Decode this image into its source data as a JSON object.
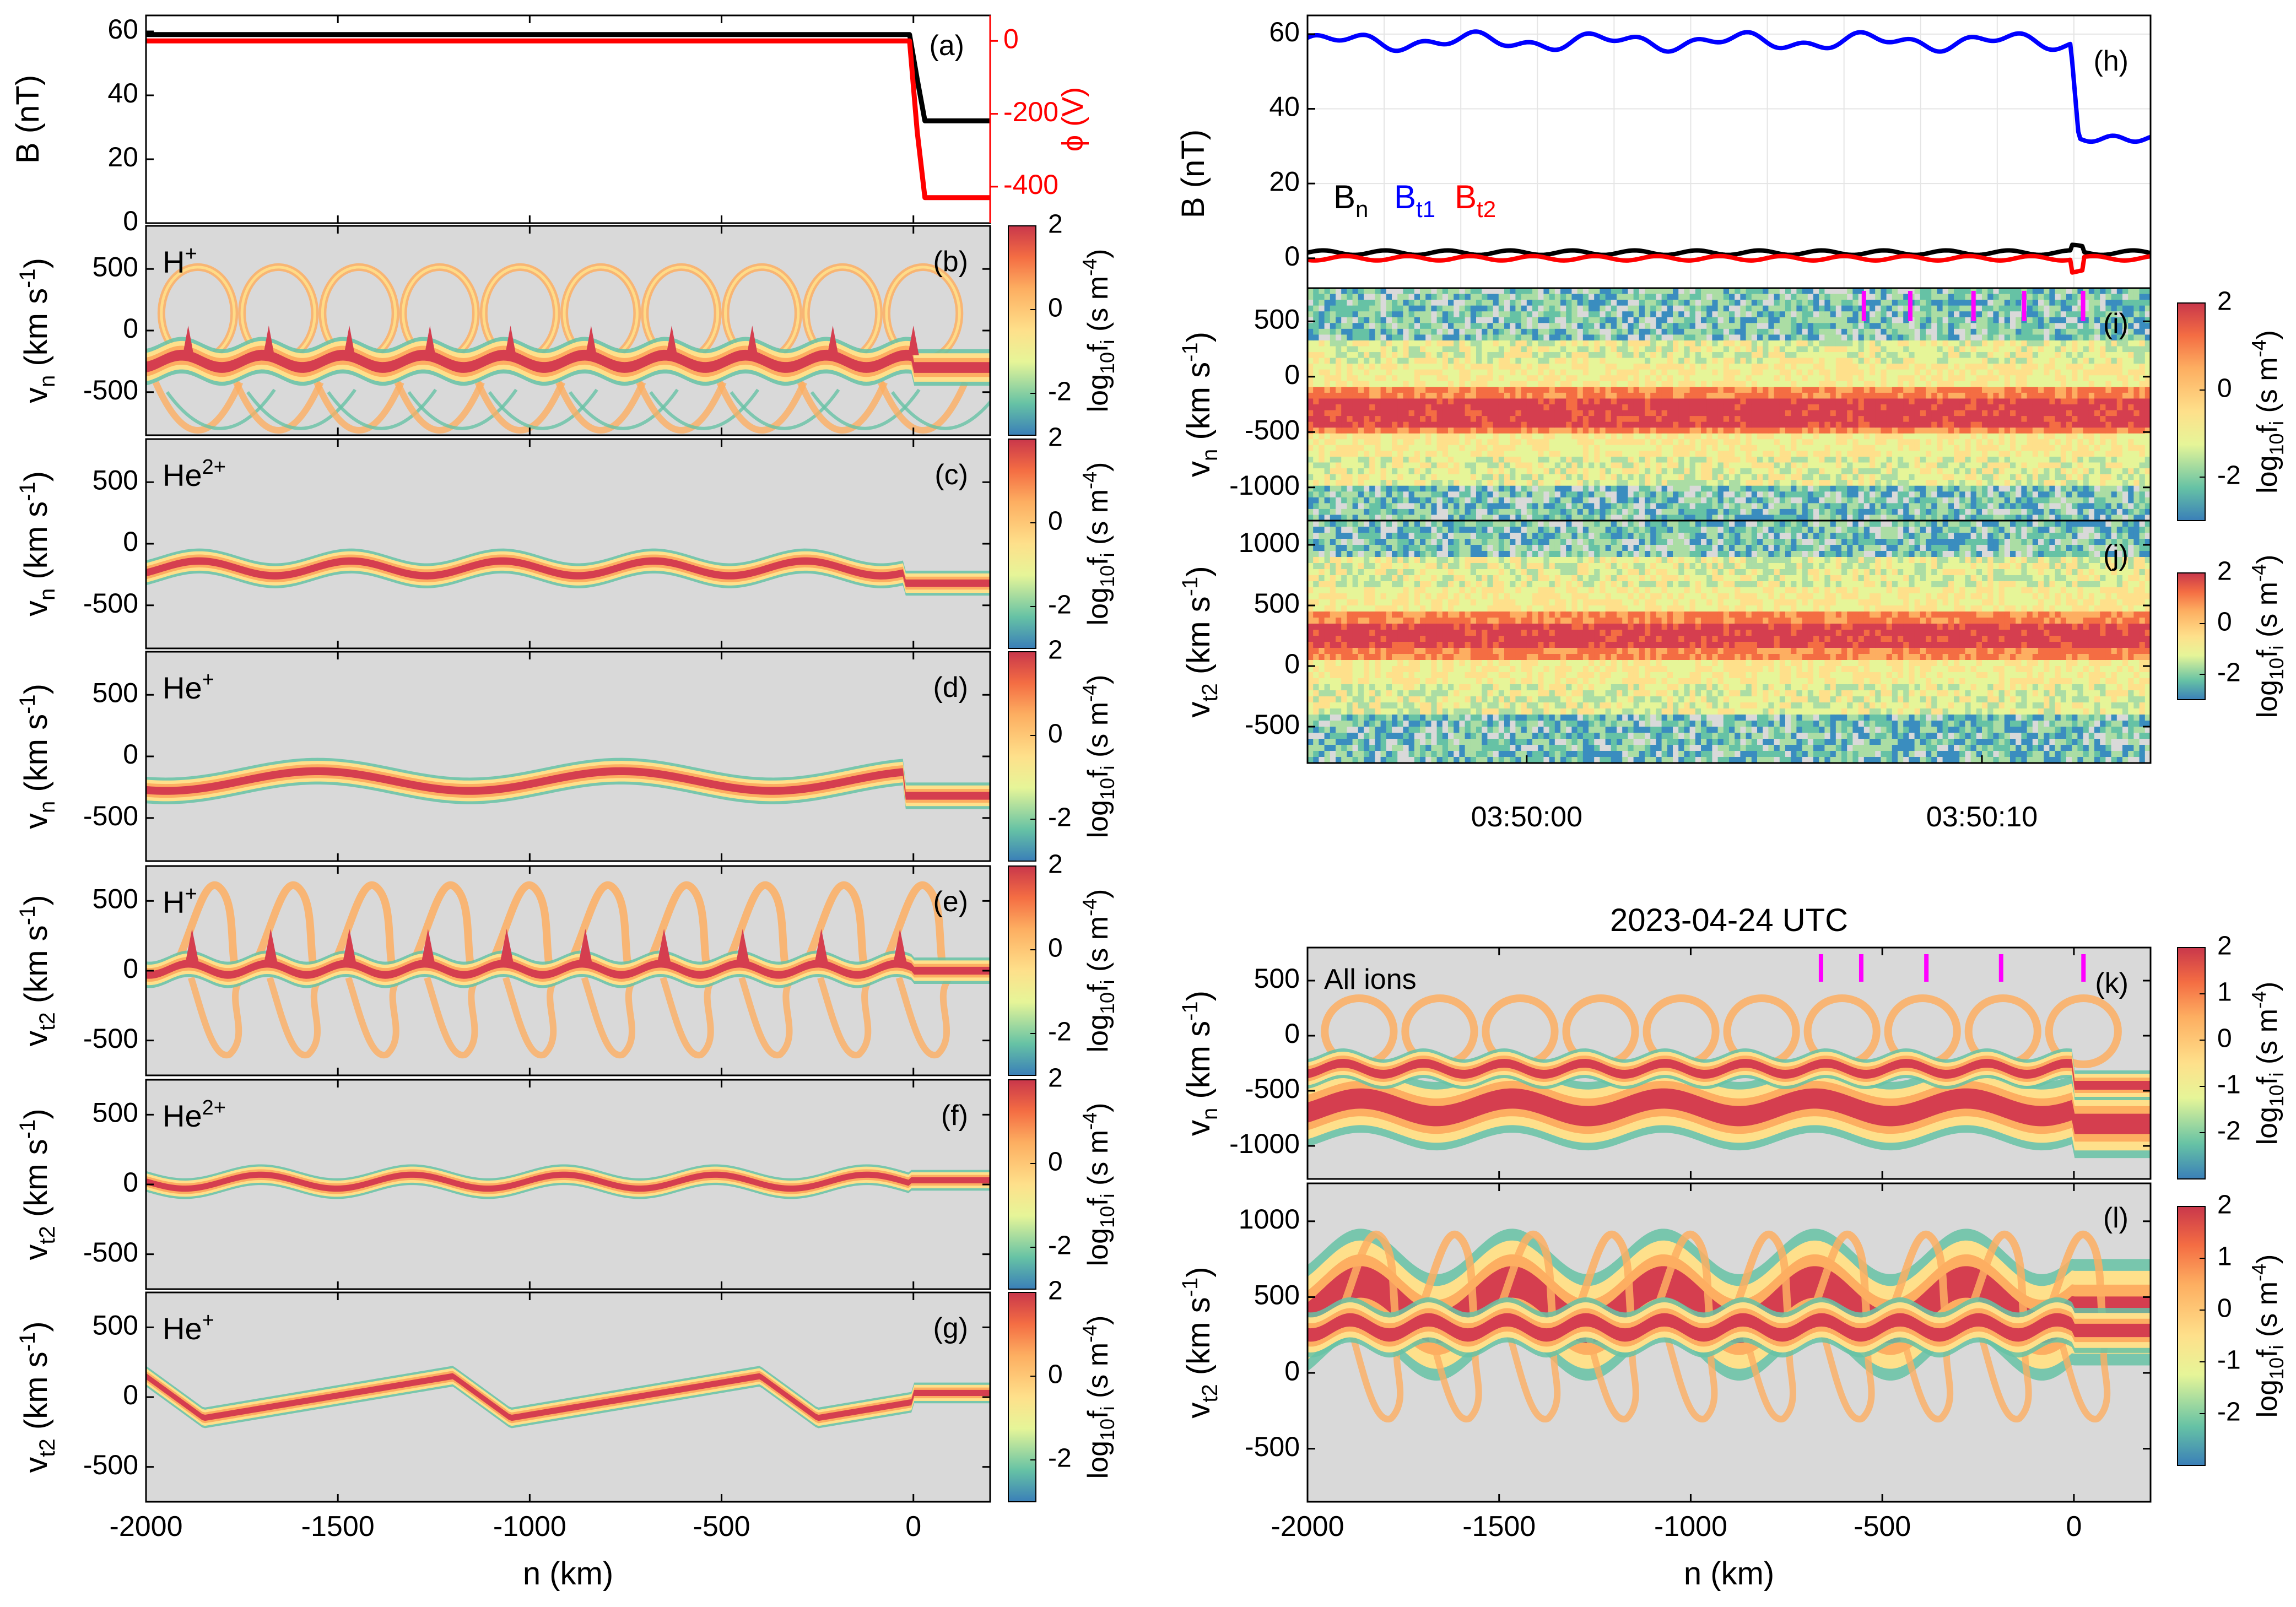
{
  "figure_date_label": "2023-04-24 UTC",
  "colorbar": {
    "label": "log₁₀fᵢ (s m⁻⁴)",
    "label_base": "log",
    "label_sub": "10",
    "label_f": "f",
    "label_sub2": "i",
    "label_unit": "(s m",
    "label_unit_exp": "-4",
    "ticks_simple": [
      "2",
      "0",
      "-2"
    ],
    "ticks_full": [
      "2",
      "1",
      "0",
      "-1",
      "-2"
    ],
    "range": [
      -3,
      2
    ]
  },
  "colors": {
    "panel_bg": "#d9d9d9",
    "black": "#000000",
    "blue": "#0000ff",
    "red": "#ff0000",
    "magenta": "#ff00ff",
    "grid": "#e5e5e5"
  },
  "chart_data": [
    {
      "id": "a",
      "type": "line",
      "panel_label": "(a)",
      "ylabel": "B (nT)",
      "y2label": "ϕ (V)",
      "xlim": [
        -2000,
        200
      ],
      "ylim": [
        0,
        65
      ],
      "y2lim": [
        -500,
        70
      ],
      "yticks": [
        0,
        20,
        40,
        60
      ],
      "y2ticks": [
        0,
        -200,
        -400
      ],
      "series": [
        {
          "name": "B",
          "color": "#000000",
          "axis": "left",
          "x": [
            -2000,
            -10,
            10,
            30,
            200
          ],
          "values": [
            59,
            59,
            45,
            32,
            32
          ]
        },
        {
          "name": "phi",
          "color": "#ff0000",
          "axis": "right",
          "x": [
            -2000,
            -10,
            10,
            30,
            200
          ],
          "values": [
            0,
            0,
            -250,
            -430,
            -430
          ]
        }
      ]
    },
    {
      "id": "b",
      "type": "heatmap",
      "panel_label": "(b)",
      "species": "H+",
      "species_base": "H",
      "species_sup": "+",
      "ylabel": "v_n (km s⁻¹)",
      "ylabel_var": "v",
      "ylabel_sub": "n",
      "ylim": [
        -850,
        850
      ],
      "yticks": [
        500,
        0,
        -500
      ],
      "pattern": "hn"
    },
    {
      "id": "c",
      "type": "heatmap",
      "panel_label": "(c)",
      "species": "He2+",
      "species_base": "He",
      "species_sup": "2+",
      "ylabel": "v_n (km s⁻¹)",
      "ylabel_var": "v",
      "ylabel_sub": "n",
      "ylim": [
        -850,
        850
      ],
      "yticks": [
        500,
        0,
        -500
      ],
      "pattern": "he2n"
    },
    {
      "id": "d",
      "type": "heatmap",
      "panel_label": "(d)",
      "species": "He+",
      "species_base": "He",
      "species_sup": "+",
      "ylabel": "v_n (km s⁻¹)",
      "ylabel_var": "v",
      "ylabel_sub": "n",
      "ylim": [
        -850,
        850
      ],
      "yticks": [
        500,
        0,
        -500
      ],
      "pattern": "he1n"
    },
    {
      "id": "e",
      "type": "heatmap",
      "panel_label": "(e)",
      "species": "H+",
      "species_base": "H",
      "species_sup": "+",
      "ylabel": "v_t2 (km s⁻¹)",
      "ylabel_var": "v",
      "ylabel_sub": "t2",
      "ylim": [
        -750,
        750
      ],
      "yticks": [
        500,
        0,
        -500
      ],
      "pattern": "ht"
    },
    {
      "id": "f",
      "type": "heatmap",
      "panel_label": "(f)",
      "species": "He2+",
      "species_base": "He",
      "species_sup": "2+",
      "ylabel": "v_t2 (km s⁻¹)",
      "ylabel_var": "v",
      "ylabel_sub": "t2",
      "ylim": [
        -750,
        750
      ],
      "yticks": [
        500,
        0,
        -500
      ],
      "pattern": "he2t"
    },
    {
      "id": "g",
      "type": "heatmap",
      "panel_label": "(g)",
      "species": "He+",
      "species_base": "He",
      "species_sup": "+",
      "ylabel": "v_t2 (km s⁻¹)",
      "ylabel_var": "v",
      "ylabel_sub": "t2",
      "ylim": [
        -750,
        750
      ],
      "yticks": [
        500,
        0,
        -500
      ],
      "pattern": "he1t",
      "xlabel": "n (km)",
      "xlim": [
        -2000,
        200
      ],
      "xticks": [
        -2000,
        -1500,
        -1000,
        -500,
        0
      ]
    },
    {
      "id": "h",
      "type": "line",
      "panel_label": "(h)",
      "ylabel": "B (nT)",
      "ylim": [
        -8,
        65
      ],
      "yticks": [
        0,
        20,
        40,
        60
      ],
      "legend": [
        {
          "text": "B",
          "sub": "n",
          "color": "#000000"
        },
        {
          "text": "B",
          "sub": "t1",
          "color": "#0000ff"
        },
        {
          "text": "B",
          "sub": "t2",
          "color": "#ff0000"
        }
      ],
      "series": [
        {
          "name": "Bn",
          "color": "#000000",
          "level": 1.5
        },
        {
          "name": "Bt1",
          "color": "#0000ff",
          "level": 58,
          "jump_to": 32
        },
        {
          "name": "Bt2",
          "color": "#ff0000",
          "level": 0
        }
      ]
    },
    {
      "id": "i",
      "type": "heatmap",
      "panel_label": "(i)",
      "ylabel": "v_n (km s⁻¹)",
      "ylabel_var": "v",
      "ylabel_sub": "n",
      "ylim": [
        -1300,
        800
      ],
      "yticks": [
        500,
        0,
        -500,
        -1000
      ],
      "pattern": "obs_n",
      "markers_label": "magenta ticks",
      "marker_positions": [
        0.66,
        0.715,
        0.79,
        0.85,
        0.92
      ]
    },
    {
      "id": "j",
      "type": "heatmap",
      "panel_label": "(j)",
      "ylabel": "v_t2 (km s⁻¹)",
      "ylabel_var": "v",
      "ylabel_sub": "t2",
      "ylim": [
        -800,
        1200
      ],
      "yticks": [
        1000,
        500,
        0,
        -500
      ],
      "pattern": "obs_t",
      "xticks_labels": [
        "03:50:00",
        "03:50:10"
      ],
      "xticks_pos": [
        0.26,
        0.8
      ]
    },
    {
      "id": "k",
      "type": "heatmap",
      "panel_label": "(k)",
      "species": "All ions",
      "ylabel": "v_n (km s⁻¹)",
      "ylabel_var": "v",
      "ylabel_sub": "n",
      "ylim": [
        -1300,
        800
      ],
      "yticks": [
        500,
        0,
        -500,
        -1000
      ],
      "pattern": "alln",
      "marker_positions_km": [
        -660,
        -555,
        -385,
        -190,
        25
      ]
    },
    {
      "id": "l",
      "type": "heatmap",
      "panel_label": "(l)",
      "ylabel": "v_t2 (km s⁻¹)",
      "ylabel_var": "v",
      "ylabel_sub": "t2",
      "ylim": [
        -850,
        1250
      ],
      "yticks": [
        1000,
        500,
        0,
        -500
      ],
      "pattern": "allt",
      "xlabel": "n (km)",
      "xlim": [
        -2000,
        200
      ],
      "xticks": [
        -2000,
        -1500,
        -1000,
        -500,
        0
      ]
    }
  ]
}
